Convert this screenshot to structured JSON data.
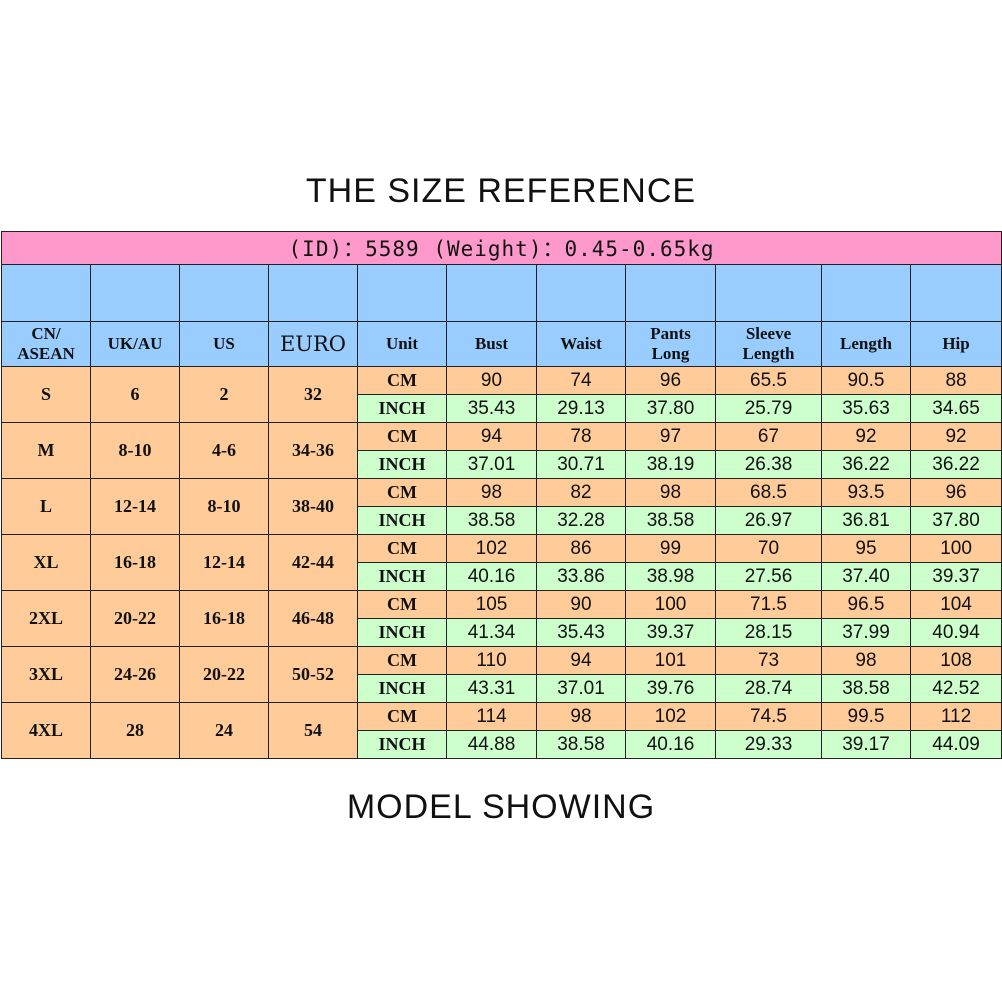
{
  "title": "THE SIZE REFERENCE",
  "info_row": "(ID)：5589 (Weight)：0.45-0.65kg",
  "headers": [
    "CN/\nASEAN",
    "UK/AU",
    "US",
    "EURO",
    "Unit",
    "Bust",
    "Waist",
    "Pants\nLong",
    "Sleeve\nLength",
    "Length",
    "Hip"
  ],
  "unit_labels": {
    "cm": "CM",
    "inch": "INCH"
  },
  "rows": [
    {
      "cn": "S",
      "uk": "6",
      "us": "2",
      "euro": "32",
      "cm": [
        "90",
        "74",
        "96",
        "65.5",
        "90.5",
        "88"
      ],
      "inch": [
        "35.43",
        "29.13",
        "37.80",
        "25.79",
        "35.63",
        "34.65"
      ]
    },
    {
      "cn": "M",
      "uk": "8-10",
      "us": "4-6",
      "euro": "34-36",
      "cm": [
        "94",
        "78",
        "97",
        "67",
        "92",
        "92"
      ],
      "inch": [
        "37.01",
        "30.71",
        "38.19",
        "26.38",
        "36.22",
        "36.22"
      ]
    },
    {
      "cn": "L",
      "uk": "12-14",
      "us": "8-10",
      "euro": "38-40",
      "cm": [
        "98",
        "82",
        "98",
        "68.5",
        "93.5",
        "96"
      ],
      "inch": [
        "38.58",
        "32.28",
        "38.58",
        "26.97",
        "36.81",
        "37.80"
      ]
    },
    {
      "cn": "XL",
      "uk": "16-18",
      "us": "12-14",
      "euro": "42-44",
      "cm": [
        "102",
        "86",
        "99",
        "70",
        "95",
        "100"
      ],
      "inch": [
        "40.16",
        "33.86",
        "38.98",
        "27.56",
        "37.40",
        "39.37"
      ]
    },
    {
      "cn": "2XL",
      "uk": "20-22",
      "us": "16-18",
      "euro": "46-48",
      "cm": [
        "105",
        "90",
        "100",
        "71.5",
        "96.5",
        "104"
      ],
      "inch": [
        "41.34",
        "35.43",
        "39.37",
        "28.15",
        "37.99",
        "40.94"
      ]
    },
    {
      "cn": "3XL",
      "uk": "24-26",
      "us": "20-22",
      "euro": "50-52",
      "cm": [
        "110",
        "94",
        "101",
        "73",
        "98",
        "108"
      ],
      "inch": [
        "43.31",
        "37.01",
        "39.76",
        "28.74",
        "38.58",
        "42.52"
      ]
    },
    {
      "cn": "4XL",
      "uk": "28",
      "us": "24",
      "euro": "54",
      "cm": [
        "114",
        "98",
        "102",
        "74.5",
        "99.5",
        "112"
      ],
      "inch": [
        "44.88",
        "38.58",
        "40.16",
        "29.33",
        "39.17",
        "44.09"
      ]
    }
  ],
  "footer": "MODEL SHOWING",
  "colors": {
    "info_row": "#ff99cc",
    "header": "#99ccff",
    "size_cells": "#ffcc99",
    "inch_rows": "#ccffcc"
  }
}
